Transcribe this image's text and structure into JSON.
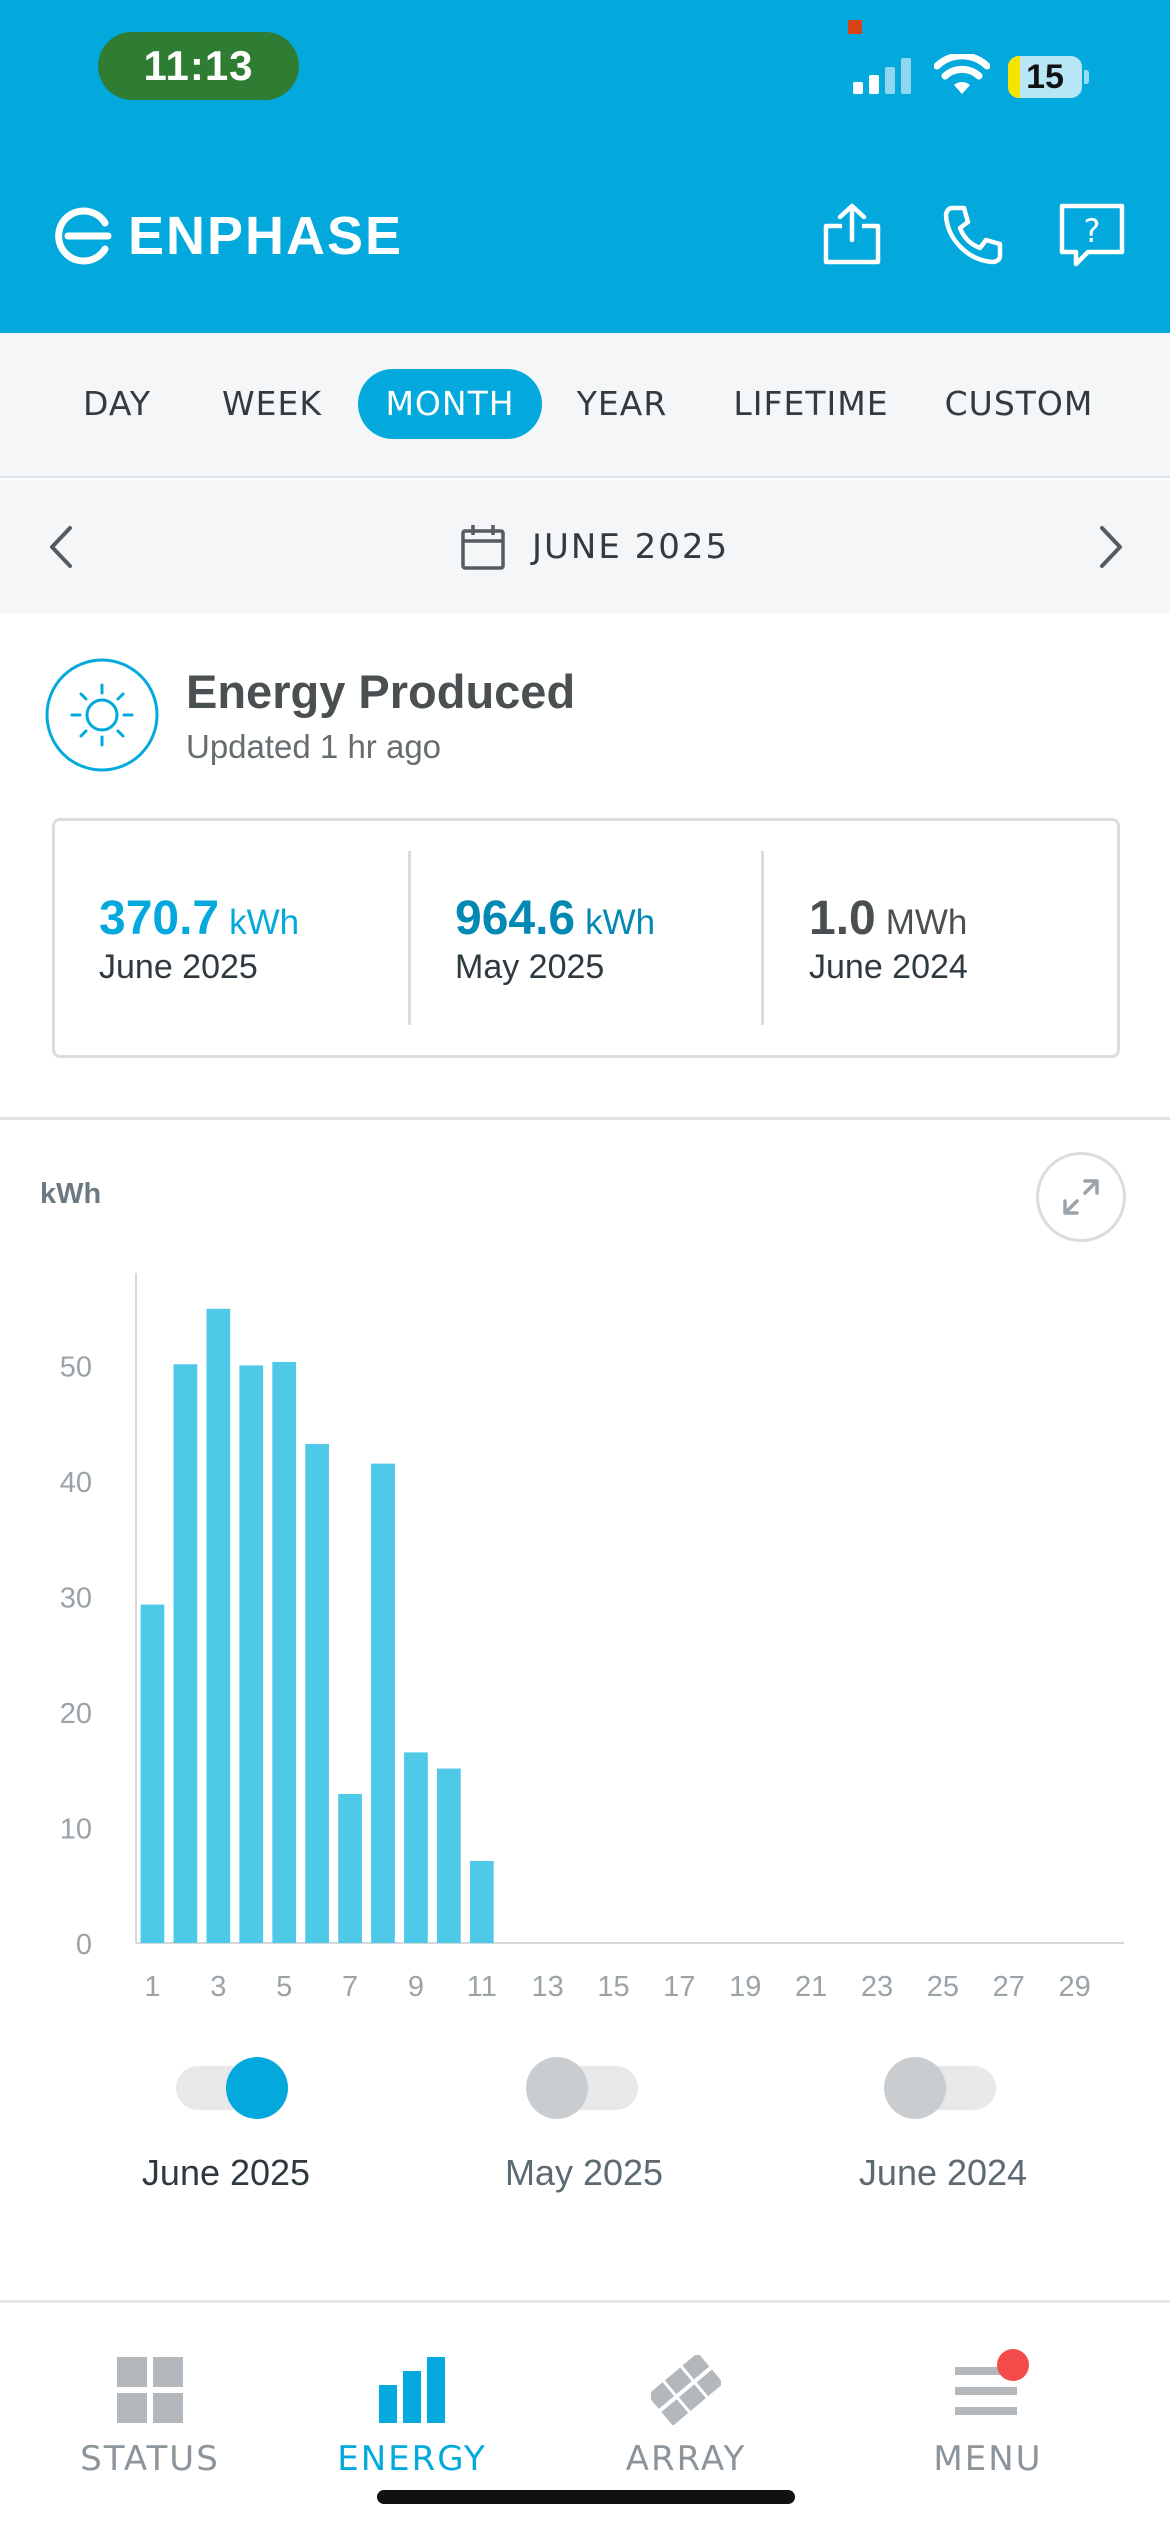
{
  "status_bar": {
    "time": "11:13",
    "battery": "15"
  },
  "brand": {
    "name": "ENPHASE",
    "accent_color": "#03a9dc"
  },
  "header_icons": [
    "share-icon",
    "phone-icon",
    "help-icon"
  ],
  "tabs": [
    {
      "label": "DAY",
      "active": false
    },
    {
      "label": "WEEK",
      "active": false
    },
    {
      "label": "MONTH",
      "active": true
    },
    {
      "label": "YEAR",
      "active": false
    },
    {
      "label": "LIFETIME",
      "active": false
    },
    {
      "label": "CUSTOM",
      "active": false
    }
  ],
  "date_nav": {
    "label": "JUNE 2025"
  },
  "produced": {
    "title": "Energy Produced",
    "updated": "Updated 1 hr ago"
  },
  "stats": [
    {
      "value": "370.7",
      "unit": "kWh",
      "period": "June 2025",
      "color": "#03a9dc"
    },
    {
      "value": "964.6",
      "unit": "kWh",
      "period": "May 2025",
      "color": "#0289b3"
    },
    {
      "value": "1.0",
      "unit": "MWh",
      "period": "June 2024",
      "color": "#4a4f52"
    }
  ],
  "chart_data": {
    "type": "bar",
    "ylabel": "kWh",
    "ylim": [
      0,
      58
    ],
    "yticks": [
      0,
      10,
      20,
      30,
      40,
      50
    ],
    "xticks": [
      1,
      3,
      5,
      7,
      9,
      11,
      13,
      15,
      17,
      19,
      21,
      23,
      25,
      27,
      29
    ],
    "x_range": [
      1,
      30
    ],
    "series": [
      {
        "name": "June 2025",
        "color": "#4ec9e8",
        "x": [
          1,
          2,
          3,
          4,
          5,
          6,
          7,
          8,
          9,
          10,
          11
        ],
        "values": [
          29.3,
          50.1,
          54.9,
          50.0,
          50.3,
          43.2,
          12.9,
          41.5,
          16.5,
          15.1,
          7.1
        ]
      }
    ],
    "grid": false
  },
  "legend": [
    {
      "label": "June 2025",
      "on": true
    },
    {
      "label": "May 2025",
      "on": false
    },
    {
      "label": "June 2024",
      "on": false
    }
  ],
  "bottom_nav": [
    {
      "label": "STATUS",
      "active": false
    },
    {
      "label": "ENERGY",
      "active": true
    },
    {
      "label": "ARRAY",
      "active": false
    },
    {
      "label": "MENU",
      "active": false
    }
  ]
}
